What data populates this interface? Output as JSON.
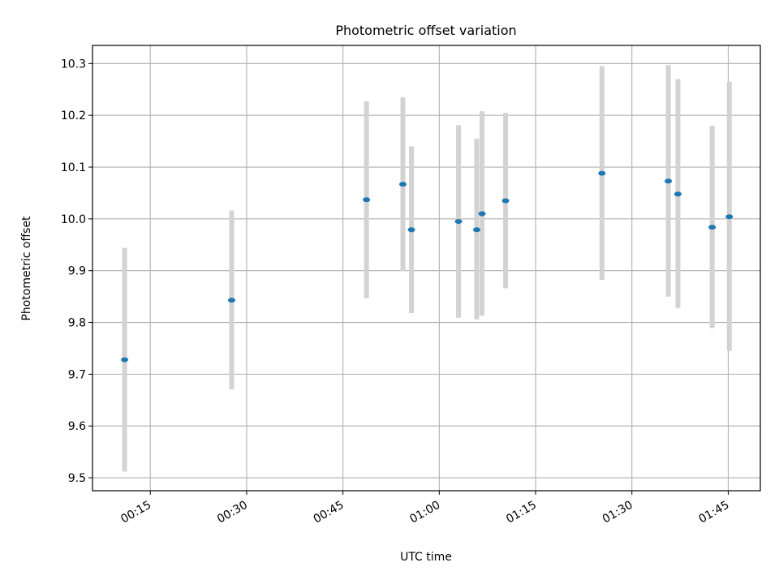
{
  "chart_data": {
    "type": "scatter",
    "title": "Photometric offset variation",
    "xlabel": "UTC time",
    "ylabel": "Photometric offset",
    "x_tick_labels": [
      "00:15",
      "00:30",
      "00:45",
      "01:00",
      "01:15",
      "01:30",
      "01:45"
    ],
    "x_tick_minutes": [
      15,
      30,
      45,
      60,
      75,
      90,
      105
    ],
    "xlim_minutes": [
      6,
      110
    ],
    "y_ticks": [
      9.5,
      9.6,
      9.7,
      9.8,
      9.9,
      10.0,
      10.1,
      10.2,
      10.3
    ],
    "ylim": [
      9.475,
      10.335
    ],
    "grid": true,
    "points": [
      {
        "x": "00:11:00",
        "y": 9.728,
        "yerr_low": 9.512,
        "yerr_high": 9.944
      },
      {
        "x": "00:27:40",
        "y": 9.843,
        "yerr_low": 9.671,
        "yerr_high": 10.016
      },
      {
        "x": "00:48:40",
        "y": 10.037,
        "yerr_low": 9.847,
        "yerr_high": 10.227
      },
      {
        "x": "00:54:20",
        "y": 10.067,
        "yerr_low": 9.899,
        "yerr_high": 10.235
      },
      {
        "x": "00:55:40",
        "y": 9.979,
        "yerr_low": 9.818,
        "yerr_high": 10.14
      },
      {
        "x": "01:03:00",
        "y": 9.995,
        "yerr_low": 9.809,
        "yerr_high": 10.181
      },
      {
        "x": "01:05:50",
        "y": 9.979,
        "yerr_low": 9.806,
        "yerr_high": 10.155
      },
      {
        "x": "01:06:40",
        "y": 10.01,
        "yerr_low": 9.813,
        "yerr_high": 10.208
      },
      {
        "x": "01:10:20",
        "y": 10.035,
        "yerr_low": 9.866,
        "yerr_high": 10.205
      },
      {
        "x": "01:25:20",
        "y": 10.088,
        "yerr_low": 9.882,
        "yerr_high": 10.295
      },
      {
        "x": "01:35:40",
        "y": 10.073,
        "yerr_low": 9.85,
        "yerr_high": 10.297
      },
      {
        "x": "01:37:10",
        "y": 10.048,
        "yerr_low": 9.828,
        "yerr_high": 10.27
      },
      {
        "x": "01:42:30",
        "y": 9.984,
        "yerr_low": 9.789,
        "yerr_high": 10.18
      },
      {
        "x": "01:45:10",
        "y": 10.004,
        "yerr_low": 9.745,
        "yerr_high": 10.265
      }
    ],
    "colors": {
      "marker": "#1f77b4",
      "errorbar": "#d3d3d3",
      "grid": "#b0b0b0",
      "axes": "#000000"
    }
  }
}
